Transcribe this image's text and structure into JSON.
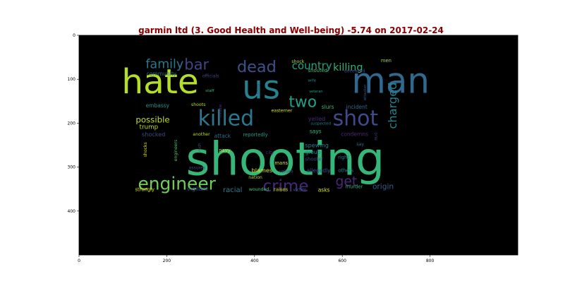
{
  "chart_data": {
    "type": "wordcloud",
    "title": "garmin ltd (3. Good Health and Well-being) -5.74 on 2017-02-24",
    "x_ticks": [
      0,
      200,
      400,
      600,
      800
    ],
    "y_ticks": [
      0,
      100,
      200,
      300,
      400
    ],
    "xlim": [
      0,
      1000
    ],
    "ylim": [
      500,
      0
    ],
    "background": "#000000",
    "title_color": "#8b0000",
    "words": [
      {
        "text": "shooting",
        "x": 470,
        "y": 282,
        "size": 105,
        "color": "#35b779"
      },
      {
        "text": "man",
        "x": 710,
        "y": 104,
        "size": 80,
        "color": "#31688e"
      },
      {
        "text": "hate",
        "x": 185,
        "y": 106,
        "size": 78,
        "color": "#b5de2b"
      },
      {
        "text": "us",
        "x": 415,
        "y": 118,
        "size": 75,
        "color": "#26828e"
      },
      {
        "text": "killed",
        "x": 335,
        "y": 190,
        "size": 48,
        "color": "#2a788e"
      },
      {
        "text": "shot",
        "x": 630,
        "y": 190,
        "size": 48,
        "color": "#3e4a89"
      },
      {
        "text": "engineer",
        "x": 223,
        "y": 338,
        "size": 40,
        "color": "#6ece58"
      },
      {
        "text": "crime",
        "x": 471,
        "y": 344,
        "size": 37,
        "color": "#482878"
      },
      {
        "text": "dead",
        "x": 405,
        "y": 72,
        "size": 36,
        "color": "#3b528b"
      },
      {
        "text": "two",
        "x": 510,
        "y": 153,
        "size": 35,
        "color": "#1fa088"
      },
      {
        "text": "bar",
        "x": 268,
        "y": 66,
        "size": 34,
        "color": "#414487"
      },
      {
        "text": "family",
        "x": 195,
        "y": 67,
        "size": 28,
        "color": "#2a788e"
      },
      {
        "text": "charged",
        "x": 715,
        "y": 160,
        "size": 26,
        "color": "#25858e",
        "rotate": -90
      },
      {
        "text": "get",
        "x": 609,
        "y": 334,
        "size": 30,
        "color": "#482878"
      },
      {
        "text": "country",
        "x": 531,
        "y": 69,
        "size": 24,
        "color": "#20a386"
      },
      {
        "text": "killing",
        "x": 613,
        "y": 74,
        "size": 23,
        "color": "#2db27d"
      },
      {
        "text": "possible",
        "x": 168,
        "y": 192,
        "size": 19,
        "color": "#bddf26"
      },
      {
        "text": "origin",
        "x": 693,
        "y": 345,
        "size": 17,
        "color": "#365d8d"
      },
      {
        "text": "racial",
        "x": 350,
        "y": 353,
        "size": 16,
        "color": "#26828e"
      },
      {
        "text": "men",
        "x": 700,
        "y": 58,
        "size": 11,
        "color": "#a0da39"
      },
      {
        "text": "community",
        "x": 188,
        "y": 88,
        "size": 12,
        "color": "#2c718e"
      },
      {
        "text": "officials",
        "x": 300,
        "y": 93,
        "size": 10,
        "color": "#3e4989"
      },
      {
        "text": "shock",
        "x": 499,
        "y": 60,
        "size": 10,
        "color": "#b5de2b"
      },
      {
        "text": "shouted",
        "x": 544,
        "y": 80,
        "size": 11,
        "color": "#46c06f"
      },
      {
        "text": "deceased",
        "x": 628,
        "y": 82,
        "size": 10,
        "color": "#414487"
      },
      {
        "text": "wife",
        "x": 531,
        "y": 104,
        "size": 9,
        "color": "#25858e"
      },
      {
        "text": "thing",
        "x": 409,
        "y": 122,
        "size": 9,
        "color": "#3b528b",
        "rotate": -90
      },
      {
        "text": "staff",
        "x": 298,
        "y": 127,
        "size": 9,
        "color": "#35b779"
      },
      {
        "text": "veteran",
        "x": 540,
        "y": 129,
        "size": 8,
        "color": "#1f9e89"
      },
      {
        "text": "attacker",
        "x": 653,
        "y": 130,
        "size": 9,
        "color": "#3b528b",
        "rotate": -90
      },
      {
        "text": "embassy",
        "x": 179,
        "y": 160,
        "size": 12,
        "color": "#21918c"
      },
      {
        "text": "shoots",
        "x": 272,
        "y": 158,
        "size": 10,
        "color": "#addc30"
      },
      {
        "text": "middle",
        "x": 323,
        "y": 172,
        "size": 9,
        "color": "#443983",
        "rotate": -90
      },
      {
        "text": "slurs",
        "x": 567,
        "y": 163,
        "size": 12,
        "color": "#35b779"
      },
      {
        "text": "incident",
        "x": 633,
        "y": 163,
        "size": 12,
        "color": "#31688e"
      },
      {
        "text": "easterner",
        "x": 462,
        "y": 172,
        "size": 10,
        "color": "#d8e219"
      },
      {
        "text": "trump",
        "x": 159,
        "y": 210,
        "size": 14,
        "color": "#bddf26"
      },
      {
        "text": "yelled",
        "x": 542,
        "y": 190,
        "size": 13,
        "color": "#472d7b"
      },
      {
        "text": "suspected",
        "x": 551,
        "y": 202,
        "size": 9,
        "color": "#26828e"
      },
      {
        "text": "shocked",
        "x": 170,
        "y": 225,
        "size": 13,
        "color": "#3e4a89"
      },
      {
        "text": "another",
        "x": 279,
        "y": 226,
        "size": 10,
        "color": "#b8de29"
      },
      {
        "text": "attack",
        "x": 327,
        "y": 229,
        "size": 12,
        "color": "#31688e"
      },
      {
        "text": "reportedly",
        "x": 402,
        "y": 227,
        "size": 11,
        "color": "#1f9e89"
      },
      {
        "text": "says",
        "x": 539,
        "y": 219,
        "size": 12,
        "color": "#35b779"
      },
      {
        "text": "condemns",
        "x": 628,
        "y": 225,
        "size": 12,
        "color": "#482878"
      },
      {
        "text": "one",
        "x": 676,
        "y": 230,
        "size": 10,
        "color": "#433e85",
        "rotate": 90
      },
      {
        "text": "shocks",
        "x": 152,
        "y": 260,
        "size": 10,
        "color": "#d8e219",
        "rotate": -90
      },
      {
        "text": "engineers",
        "x": 221,
        "y": 262,
        "size": 10,
        "color": "#4ac16d",
        "rotate": -90
      },
      {
        "text": "rush",
        "x": 276,
        "y": 255,
        "size": 9,
        "color": "#3b528b",
        "rotate": -90
      },
      {
        "text": "navy",
        "x": 332,
        "y": 262,
        "size": 11,
        "color": "#d0e11c"
      },
      {
        "text": "spewing",
        "x": 542,
        "y": 250,
        "size": 13,
        "color": "#26828e"
      },
      {
        "text": "group",
        "x": 533,
        "y": 266,
        "size": 12,
        "color": "#25858e"
      },
      {
        "text": "say",
        "x": 641,
        "y": 248,
        "size": 10,
        "color": "#2c718e"
      },
      {
        "text": "city",
        "x": 435,
        "y": 268,
        "size": 10,
        "color": "#443983"
      },
      {
        "text": "shooter",
        "x": 536,
        "y": 282,
        "size": 11,
        "color": "#3e4a89"
      },
      {
        "text": "right",
        "x": 603,
        "y": 278,
        "size": 11,
        "color": "#2a788e"
      },
      {
        "text": "mans",
        "x": 461,
        "y": 291,
        "size": 11,
        "color": "#dde318"
      },
      {
        "text": "blames",
        "x": 417,
        "y": 307,
        "size": 13,
        "color": "#d8e219"
      },
      {
        "text": "allegedly",
        "x": 546,
        "y": 308,
        "size": 12,
        "color": "#3b528b"
      },
      {
        "text": "others",
        "x": 608,
        "y": 308,
        "size": 11,
        "color": "#25858e"
      },
      {
        "text": "assures",
        "x": 269,
        "y": 302,
        "size": 10,
        "color": "#414487"
      },
      {
        "text": "values",
        "x": 472,
        "y": 310,
        "size": 10,
        "color": "#3b528b"
      },
      {
        "text": "nation",
        "x": 402,
        "y": 324,
        "size": 10,
        "color": "#b8de29"
      },
      {
        "text": "vigilant",
        "x": 270,
        "y": 349,
        "size": 13,
        "color": "#3e4a89"
      },
      {
        "text": "wounded",
        "x": 410,
        "y": 351,
        "size": 10,
        "color": "#46c06f"
      },
      {
        "text": "raises",
        "x": 460,
        "y": 351,
        "size": 11,
        "color": "#d0e11c"
      },
      {
        "text": "victim",
        "x": 503,
        "y": 352,
        "size": 10,
        "color": "#31688e"
      },
      {
        "text": "asks",
        "x": 558,
        "y": 352,
        "size": 12,
        "color": "#d8e219"
      },
      {
        "text": "murder",
        "x": 627,
        "y": 345,
        "size": 11,
        "color": "#2db27d"
      },
      {
        "text": "strongly",
        "x": 150,
        "y": 351,
        "size": 11,
        "color": "#d0e11c"
      }
    ]
  }
}
